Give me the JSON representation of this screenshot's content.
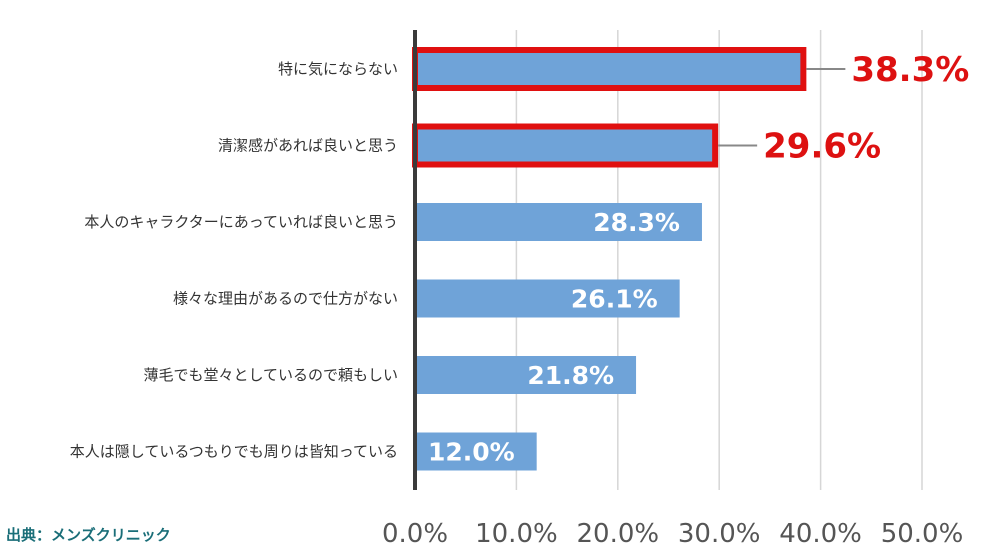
{
  "chart_data": {
    "type": "bar",
    "orientation": "horizontal",
    "categories": [
      "特に気にならない",
      "清潔感があれば良いと思う",
      "本人のキャラクターにあっていれば良いと思う",
      "様々な理由があるので仕方がない",
      "薄毛でも堂々としているので頼もしい",
      "本人は隠しているつもりでも周りは皆知っている"
    ],
    "values": [
      38.3,
      29.6,
      28.3,
      26.1,
      21.8,
      12.0
    ],
    "value_labels": [
      "38.3%",
      "29.6%",
      "28.3%",
      "26.1%",
      "21.8%",
      "12.0%"
    ],
    "highlighted": [
      true,
      true,
      false,
      false,
      false,
      false
    ],
    "xlim": [
      0,
      50
    ],
    "xticks": [
      "0.0%",
      "10.0%",
      "20.0%",
      "30.0%",
      "40.0%",
      "50.0%"
    ],
    "grid": true,
    "bar_color": "#6fa3d8",
    "highlight_color": "#e01010",
    "value_label_color": "#dd1111"
  },
  "source": "出典：メンズクリニック"
}
